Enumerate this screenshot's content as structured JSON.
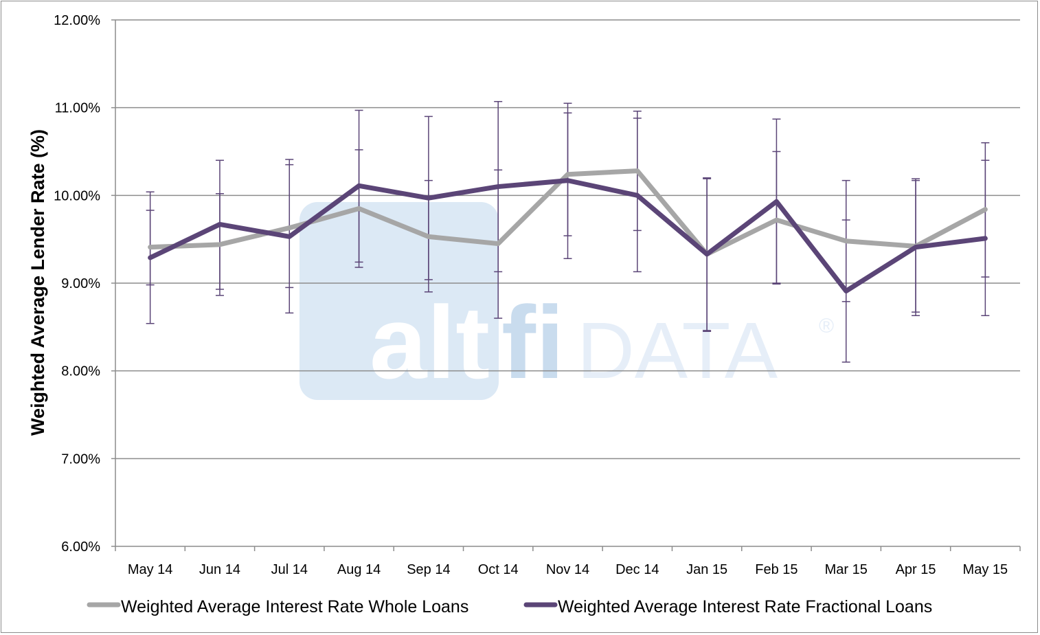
{
  "chart_data": {
    "type": "line",
    "title": "",
    "xlabel": "",
    "ylabel": "Weighted Average Lender Rate (%)",
    "ylim": [
      6.0,
      12.0
    ],
    "ytick_values": [
      6,
      7,
      8,
      9,
      10,
      11,
      12
    ],
    "ytick_labels": [
      "6.00%",
      "7.00%",
      "8.00%",
      "9.00%",
      "10.00%",
      "11.00%",
      "12.00%"
    ],
    "grid": "horizontal",
    "legend_position": "bottom",
    "categories": [
      "May 14",
      "Jun 14",
      "Jul 14",
      "Aug 14",
      "Sep 14",
      "Oct 14",
      "Nov 14",
      "Dec 14",
      "Jan 15",
      "Feb 15",
      "Mar 15",
      "Apr 15",
      "May 15"
    ],
    "series": [
      {
        "name": "Weighted Average Interest Rate Whole Loans",
        "color": "#a6a6a6",
        "values": [
          9.41,
          9.44,
          9.63,
          9.85,
          9.53,
          9.45,
          10.24,
          10.28,
          9.33,
          9.72,
          9.48,
          9.42,
          9.84
        ],
        "err_low": [
          8.98,
          8.86,
          8.95,
          9.18,
          8.9,
          8.6,
          9.54,
          9.6,
          8.46,
          8.99,
          8.79,
          8.67,
          9.07
        ],
        "err_high": [
          9.83,
          10.02,
          10.35,
          10.52,
          10.17,
          10.29,
          10.94,
          10.96,
          10.2,
          10.5,
          10.17,
          10.17,
          10.6
        ]
      },
      {
        "name": "Weighted Average Interest Rate Fractional Loans",
        "color": "#5b4577",
        "values": [
          9.29,
          9.67,
          9.53,
          10.11,
          9.97,
          10.1,
          10.17,
          10.0,
          9.33,
          9.93,
          8.91,
          9.41,
          9.51
        ],
        "err_low": [
          8.54,
          8.93,
          8.66,
          9.24,
          9.04,
          9.13,
          9.28,
          9.13,
          8.45,
          9.0,
          8.1,
          8.63,
          8.63
        ],
        "err_high": [
          10.04,
          10.4,
          10.41,
          10.97,
          10.9,
          11.07,
          11.05,
          10.88,
          10.19,
          10.87,
          9.72,
          10.19,
          10.4
        ]
      }
    ]
  },
  "watermark": {
    "brand_part1": "alt",
    "brand_part2": "fi",
    "brand_part3": "DATA",
    "registered_mark": "®"
  }
}
